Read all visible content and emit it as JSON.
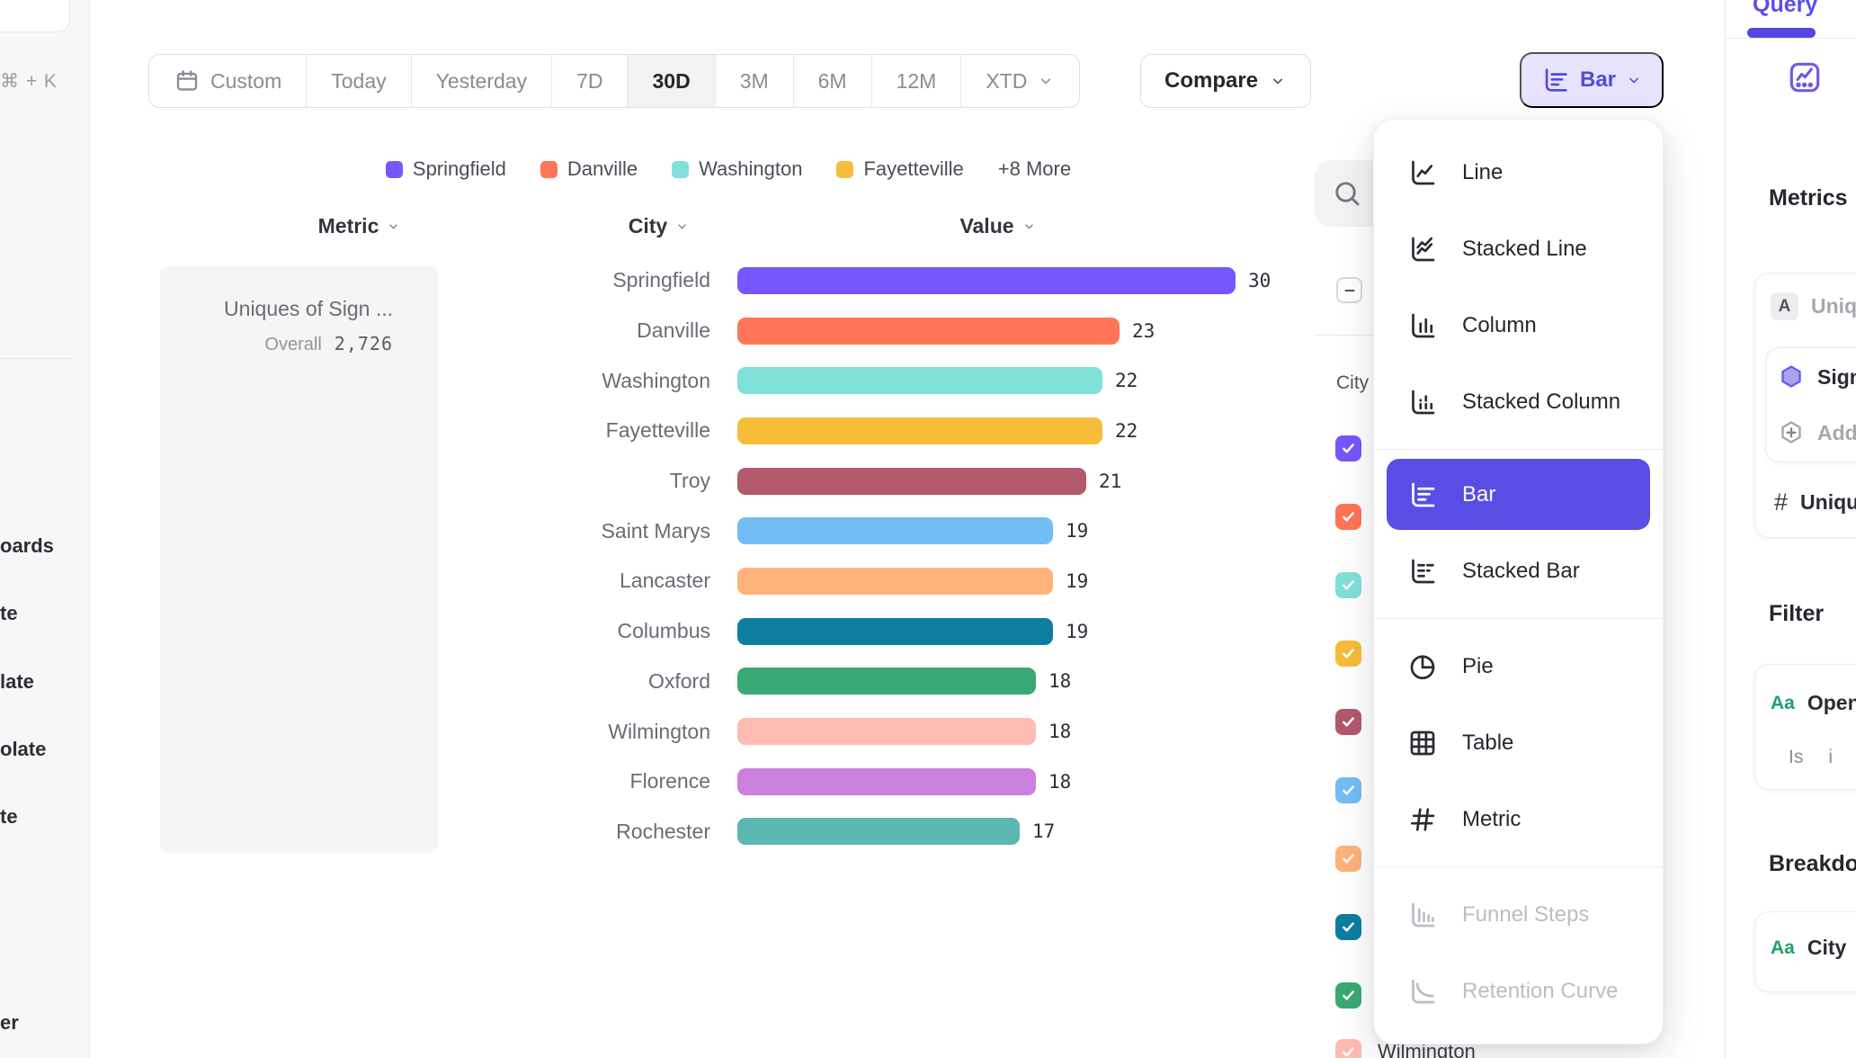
{
  "toolbar": {
    "date_ranges": [
      "Custom",
      "Today",
      "Yesterday",
      "7D",
      "30D",
      "3M",
      "6M",
      "12M",
      "XTD"
    ],
    "active_range": "30D",
    "compare_label": "Compare",
    "chart_type_button_label": "Bar"
  },
  "legend": {
    "items": [
      {
        "label": "Springfield",
        "color": "#7856FF"
      },
      {
        "label": "Danville",
        "color": "#FF7557"
      },
      {
        "label": "Washington",
        "color": "#80E1D9"
      },
      {
        "label": "Fayetteville",
        "color": "#F8BC3B"
      }
    ],
    "more_label": "+8 More"
  },
  "table_headers": {
    "metric": "Metric",
    "city": "City",
    "value": "Value"
  },
  "metric_card": {
    "title": "Uniques of Sign ...",
    "overall_label": "Overall",
    "overall_value": "2,726"
  },
  "chart_data": {
    "type": "bar",
    "orientation": "horizontal",
    "title": "Uniques of Sign ...",
    "overall": "2,726",
    "xlim": [
      0,
      30
    ],
    "grid": false,
    "categories": [
      "Springfield",
      "Danville",
      "Washington",
      "Fayetteville",
      "Troy",
      "Saint Marys",
      "Lancaster",
      "Columbus",
      "Oxford",
      "Wilmington",
      "Florence",
      "Rochester"
    ],
    "values": [
      30,
      23,
      22,
      22,
      21,
      19,
      19,
      19,
      18,
      18,
      18,
      17
    ],
    "colors": [
      "#7856FF",
      "#FF7557",
      "#80E1D9",
      "#F8BC3B",
      "#B2596E",
      "#72BEF4",
      "#FFB27A",
      "#0D7EA0",
      "#3BA974",
      "#FEBBB2",
      "#CA80DC",
      "#5BB7AF"
    ]
  },
  "chart_type_menu": {
    "items": [
      {
        "label": "Line",
        "icon": "line-chart-icon"
      },
      {
        "label": "Stacked Line",
        "icon": "stacked-line-chart-icon"
      },
      {
        "label": "Column",
        "icon": "column-chart-icon"
      },
      {
        "label": "Stacked Column",
        "icon": "stacked-column-chart-icon",
        "divider_after": true
      },
      {
        "label": "Bar",
        "icon": "bar-chart-icon",
        "selected": true
      },
      {
        "label": "Stacked Bar",
        "icon": "stacked-bar-chart-icon",
        "divider_after": true
      },
      {
        "label": "Pie",
        "icon": "pie-chart-icon"
      },
      {
        "label": "Table",
        "icon": "table-icon"
      },
      {
        "label": "Metric",
        "icon": "metric-icon",
        "divider_after": true
      },
      {
        "label": "Funnel Steps",
        "icon": "funnel-steps-icon",
        "disabled": true
      },
      {
        "label": "Retention Curve",
        "icon": "retention-curve-icon",
        "disabled": true
      }
    ]
  },
  "city_filter": {
    "label": "City",
    "select_all_state": "indeterminate",
    "checkbox_colors": [
      "#7856FF",
      "#FF7557",
      "#80E1D9",
      "#F8BC3B",
      "#B2596E",
      "#72BEF4",
      "#FFB27A",
      "#0D7EA0",
      "#3BA974",
      "#FEBBB2"
    ],
    "partial_visible_label": "Wilmington"
  },
  "right_panel": {
    "tab_label": "Query",
    "metrics_heading": "Metrics",
    "metric_row_badge": "A",
    "metric_row_text": "Uniques",
    "event_row_text": "Sign",
    "add_row_text": "Add",
    "unique_row_text": "Uniques",
    "filter_heading": "Filter",
    "filter_row_text": "Open",
    "filter_operator": "Is",
    "filter_value": "i",
    "breakdown_heading": "Breakdown",
    "breakdown_row_text": "City"
  },
  "left_sidebar": {
    "shortcut": "⌘ + K",
    "partial_items": [
      "oards",
      "te",
      "late",
      "olate",
      "te",
      "er"
    ]
  }
}
